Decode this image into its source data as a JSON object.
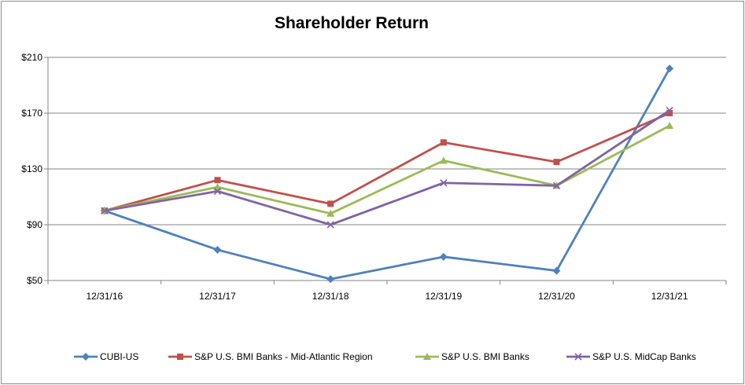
{
  "chart_data": {
    "type": "line",
    "title": "Shareholder Return",
    "xlabel": "",
    "ylabel": "",
    "categories": [
      "12/31/16",
      "12/31/17",
      "12/31/18",
      "12/31/19",
      "12/31/20",
      "12/31/21"
    ],
    "ylim": [
      50,
      210
    ],
    "yticks": [
      50,
      90,
      130,
      170,
      210
    ],
    "ytick_labels": [
      "$50",
      "$90",
      "$130",
      "$170",
      "$210"
    ],
    "grid": true,
    "legend_position": "bottom",
    "series": [
      {
        "name": "CUBI-US",
        "color": "#4f81bd",
        "marker": "diamond",
        "values": [
          100,
          72,
          51,
          67,
          57,
          202
        ]
      },
      {
        "name": "S&P U.S. BMI Banks - Mid-Atlantic Region",
        "color": "#c0504d",
        "marker": "square",
        "values": [
          100,
          122,
          105,
          149,
          135,
          170
        ]
      },
      {
        "name": "S&P U.S. BMI Banks",
        "color": "#9bbb59",
        "marker": "triangle",
        "values": [
          100,
          117,
          98,
          136,
          118,
          161
        ]
      },
      {
        "name": "S&P U.S. MidCap Banks",
        "color": "#8064a2",
        "marker": "x",
        "values": [
          100,
          114,
          90,
          120,
          118,
          172
        ]
      }
    ]
  }
}
